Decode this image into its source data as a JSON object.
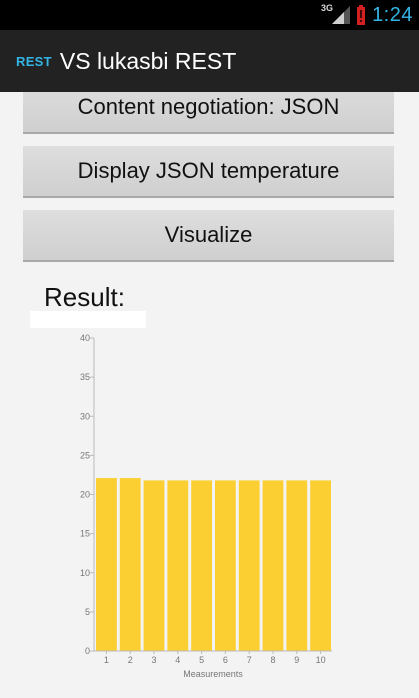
{
  "status_bar": {
    "network": "3G",
    "time": "1:24"
  },
  "action_bar": {
    "icon_label": "REST",
    "title": "VS lukasbi REST"
  },
  "buttons": {
    "content_negotiation": "Content negotiation: JSON",
    "display_temperature": "Display JSON temperature",
    "visualize": "Visualize"
  },
  "result": {
    "label": "Result:"
  },
  "chart_data": {
    "type": "bar",
    "categories": [
      "1",
      "2",
      "3",
      "4",
      "5",
      "6",
      "7",
      "8",
      "9",
      "10"
    ],
    "values": [
      22.1,
      22.1,
      21.8,
      21.8,
      21.8,
      21.8,
      21.8,
      21.8,
      21.8,
      21.8
    ],
    "xlabel": "Measurements",
    "ylabel": "",
    "ylim": [
      0,
      40
    ],
    "yticks": [
      "0",
      "5",
      "10",
      "15",
      "20",
      "25",
      "30",
      "35",
      "40"
    ],
    "bar_color": "#fbcf32",
    "grid": false
  }
}
